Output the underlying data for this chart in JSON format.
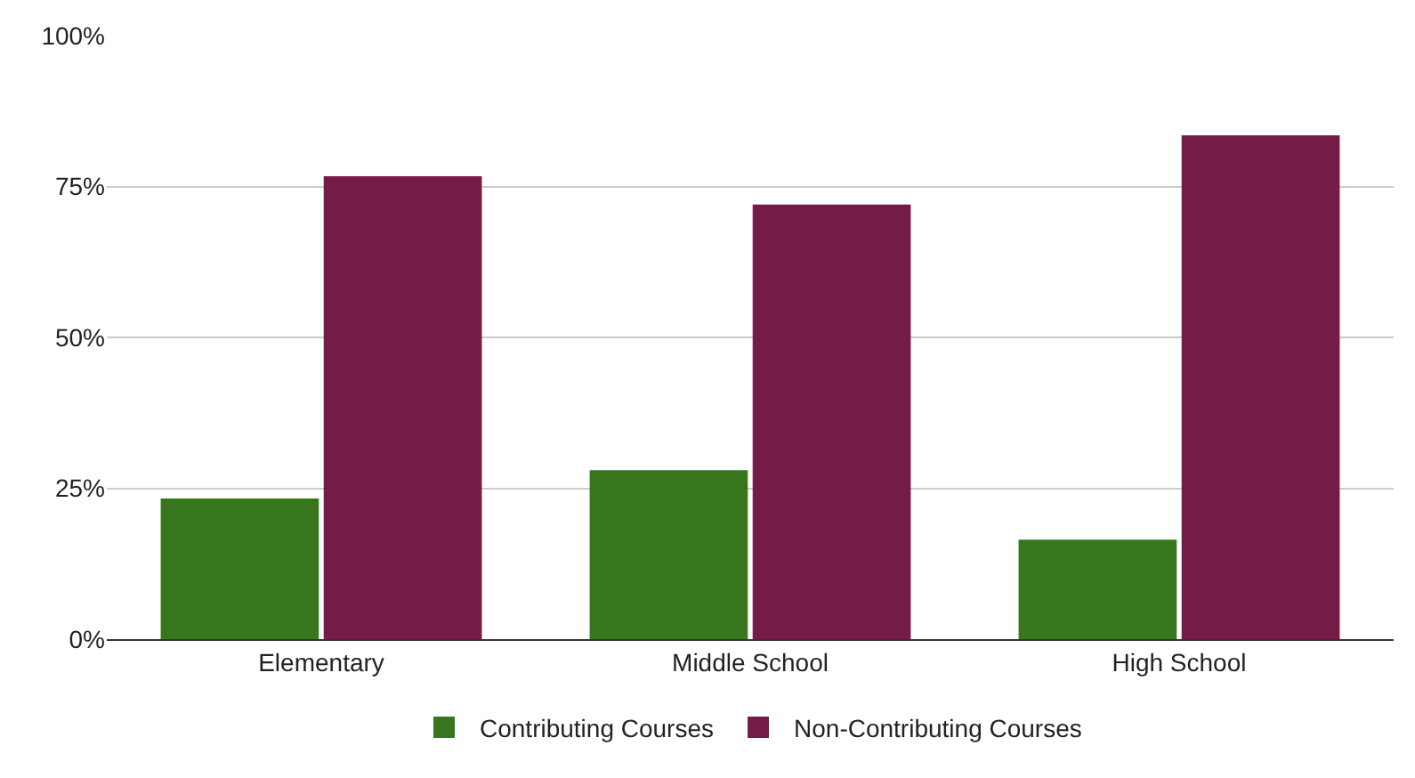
{
  "chart_data": {
    "type": "bar",
    "categories": [
      "Elementary",
      "Middle School",
      "High School"
    ],
    "series": [
      {
        "name": "Contributing Courses",
        "color": "#38761d",
        "values": [
          23.3,
          28,
          16.5
        ]
      },
      {
        "name": "Non-Contributing Courses",
        "color": "#741b47",
        "values": [
          76.7,
          72,
          83.5
        ]
      }
    ],
    "ylim": [
      0,
      100
    ],
    "yticks": [
      {
        "value": 0,
        "label": "0%"
      },
      {
        "value": 25,
        "label": "25%"
      },
      {
        "value": 50,
        "label": "50%"
      },
      {
        "value": 75,
        "label": "75%"
      },
      {
        "value": 100,
        "label": "100%"
      }
    ],
    "grid": "y",
    "legend": "bottom"
  }
}
